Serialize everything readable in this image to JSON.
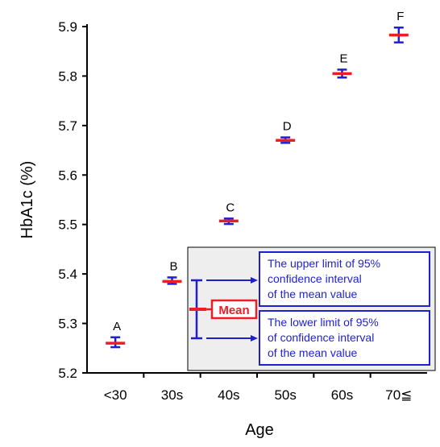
{
  "chart_data": {
    "type": "scatter",
    "title": "",
    "xlabel": "Age",
    "ylabel": "HbA1c (%)",
    "categories": [
      "<30",
      "30s",
      "40s",
      "50s",
      "60s",
      "70≦"
    ],
    "ylim": [
      5.2,
      5.9
    ],
    "yticks": [
      "5.2",
      "5.3",
      "5.4",
      "5.5",
      "5.6",
      "5.7",
      "5.8",
      "5.9"
    ],
    "grid": false,
    "series": [
      {
        "mean": [
          5.26,
          5.385,
          5.507,
          5.67,
          5.805,
          5.883
        ],
        "lower": [
          5.252,
          5.38,
          5.501,
          5.665,
          5.797,
          5.868
        ],
        "upper": [
          5.272,
          5.393,
          5.512,
          5.676,
          5.813,
          5.898
        ],
        "labels": [
          "A",
          "B",
          "C",
          "D",
          "E",
          "F"
        ]
      }
    ],
    "colors": {
      "mean": "#ee1c25",
      "ci": "#1f1fd2",
      "axis": "#000000",
      "legend_bg": "#eeeeee"
    },
    "legend": {
      "placement": "bottom-right",
      "mean_label": "Mean",
      "upper_lines": [
        "The upper limit of 95%",
        "confidence interval",
        "of the mean value"
      ],
      "lower_lines": [
        "The lower limit of 95%",
        "of confidence interval",
        "of the mean value"
      ]
    }
  }
}
